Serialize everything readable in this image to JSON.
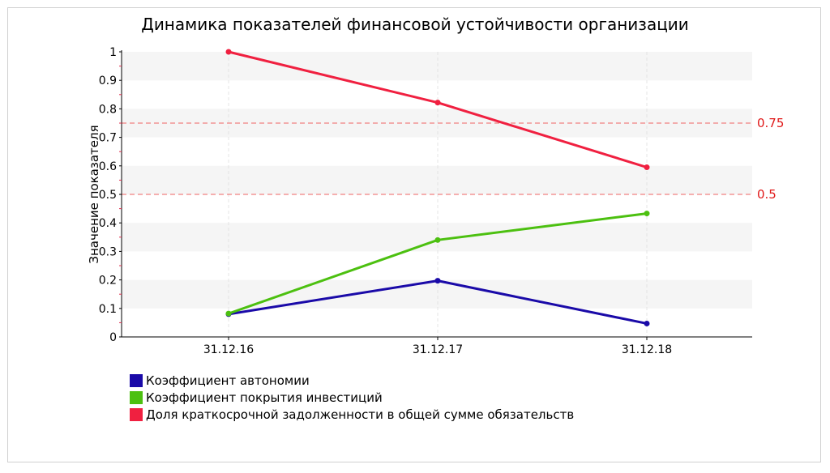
{
  "chart_data": {
    "type": "line",
    "title": "Динамика показателей финансовой устойчивости организации",
    "xlabel": "",
    "ylabel": "Значение показателя",
    "categories": [
      "31.12.16",
      "31.12.17",
      "31.12.18"
    ],
    "ylim": [
      0,
      1
    ],
    "yticks": [
      "0",
      "0.1",
      "0.2",
      "0.3",
      "0.4",
      "0.5",
      "0.6",
      "0.7",
      "0.8",
      "0.9",
      "1"
    ],
    "grid": true,
    "legend_position": "bottom-left",
    "series": [
      {
        "name": "Коэффициент автономии",
        "color": "#1a0aa8",
        "values": [
          0.08,
          0.197,
          0.047
        ]
      },
      {
        "name": "Коэффициент покрытия инвестиций",
        "color": "#4cc010",
        "values": [
          0.082,
          0.34,
          0.433
        ]
      },
      {
        "name": "Доля краткосрочной задолженности в общей сумме обязательств",
        "color": "#f02040",
        "values": [
          1.0,
          0.822,
          0.595
        ]
      }
    ],
    "reference_lines": [
      {
        "value": 0.75,
        "label": "0.75",
        "color": "#e01818"
      },
      {
        "value": 0.5,
        "label": "0.5",
        "color": "#e01818"
      }
    ]
  }
}
